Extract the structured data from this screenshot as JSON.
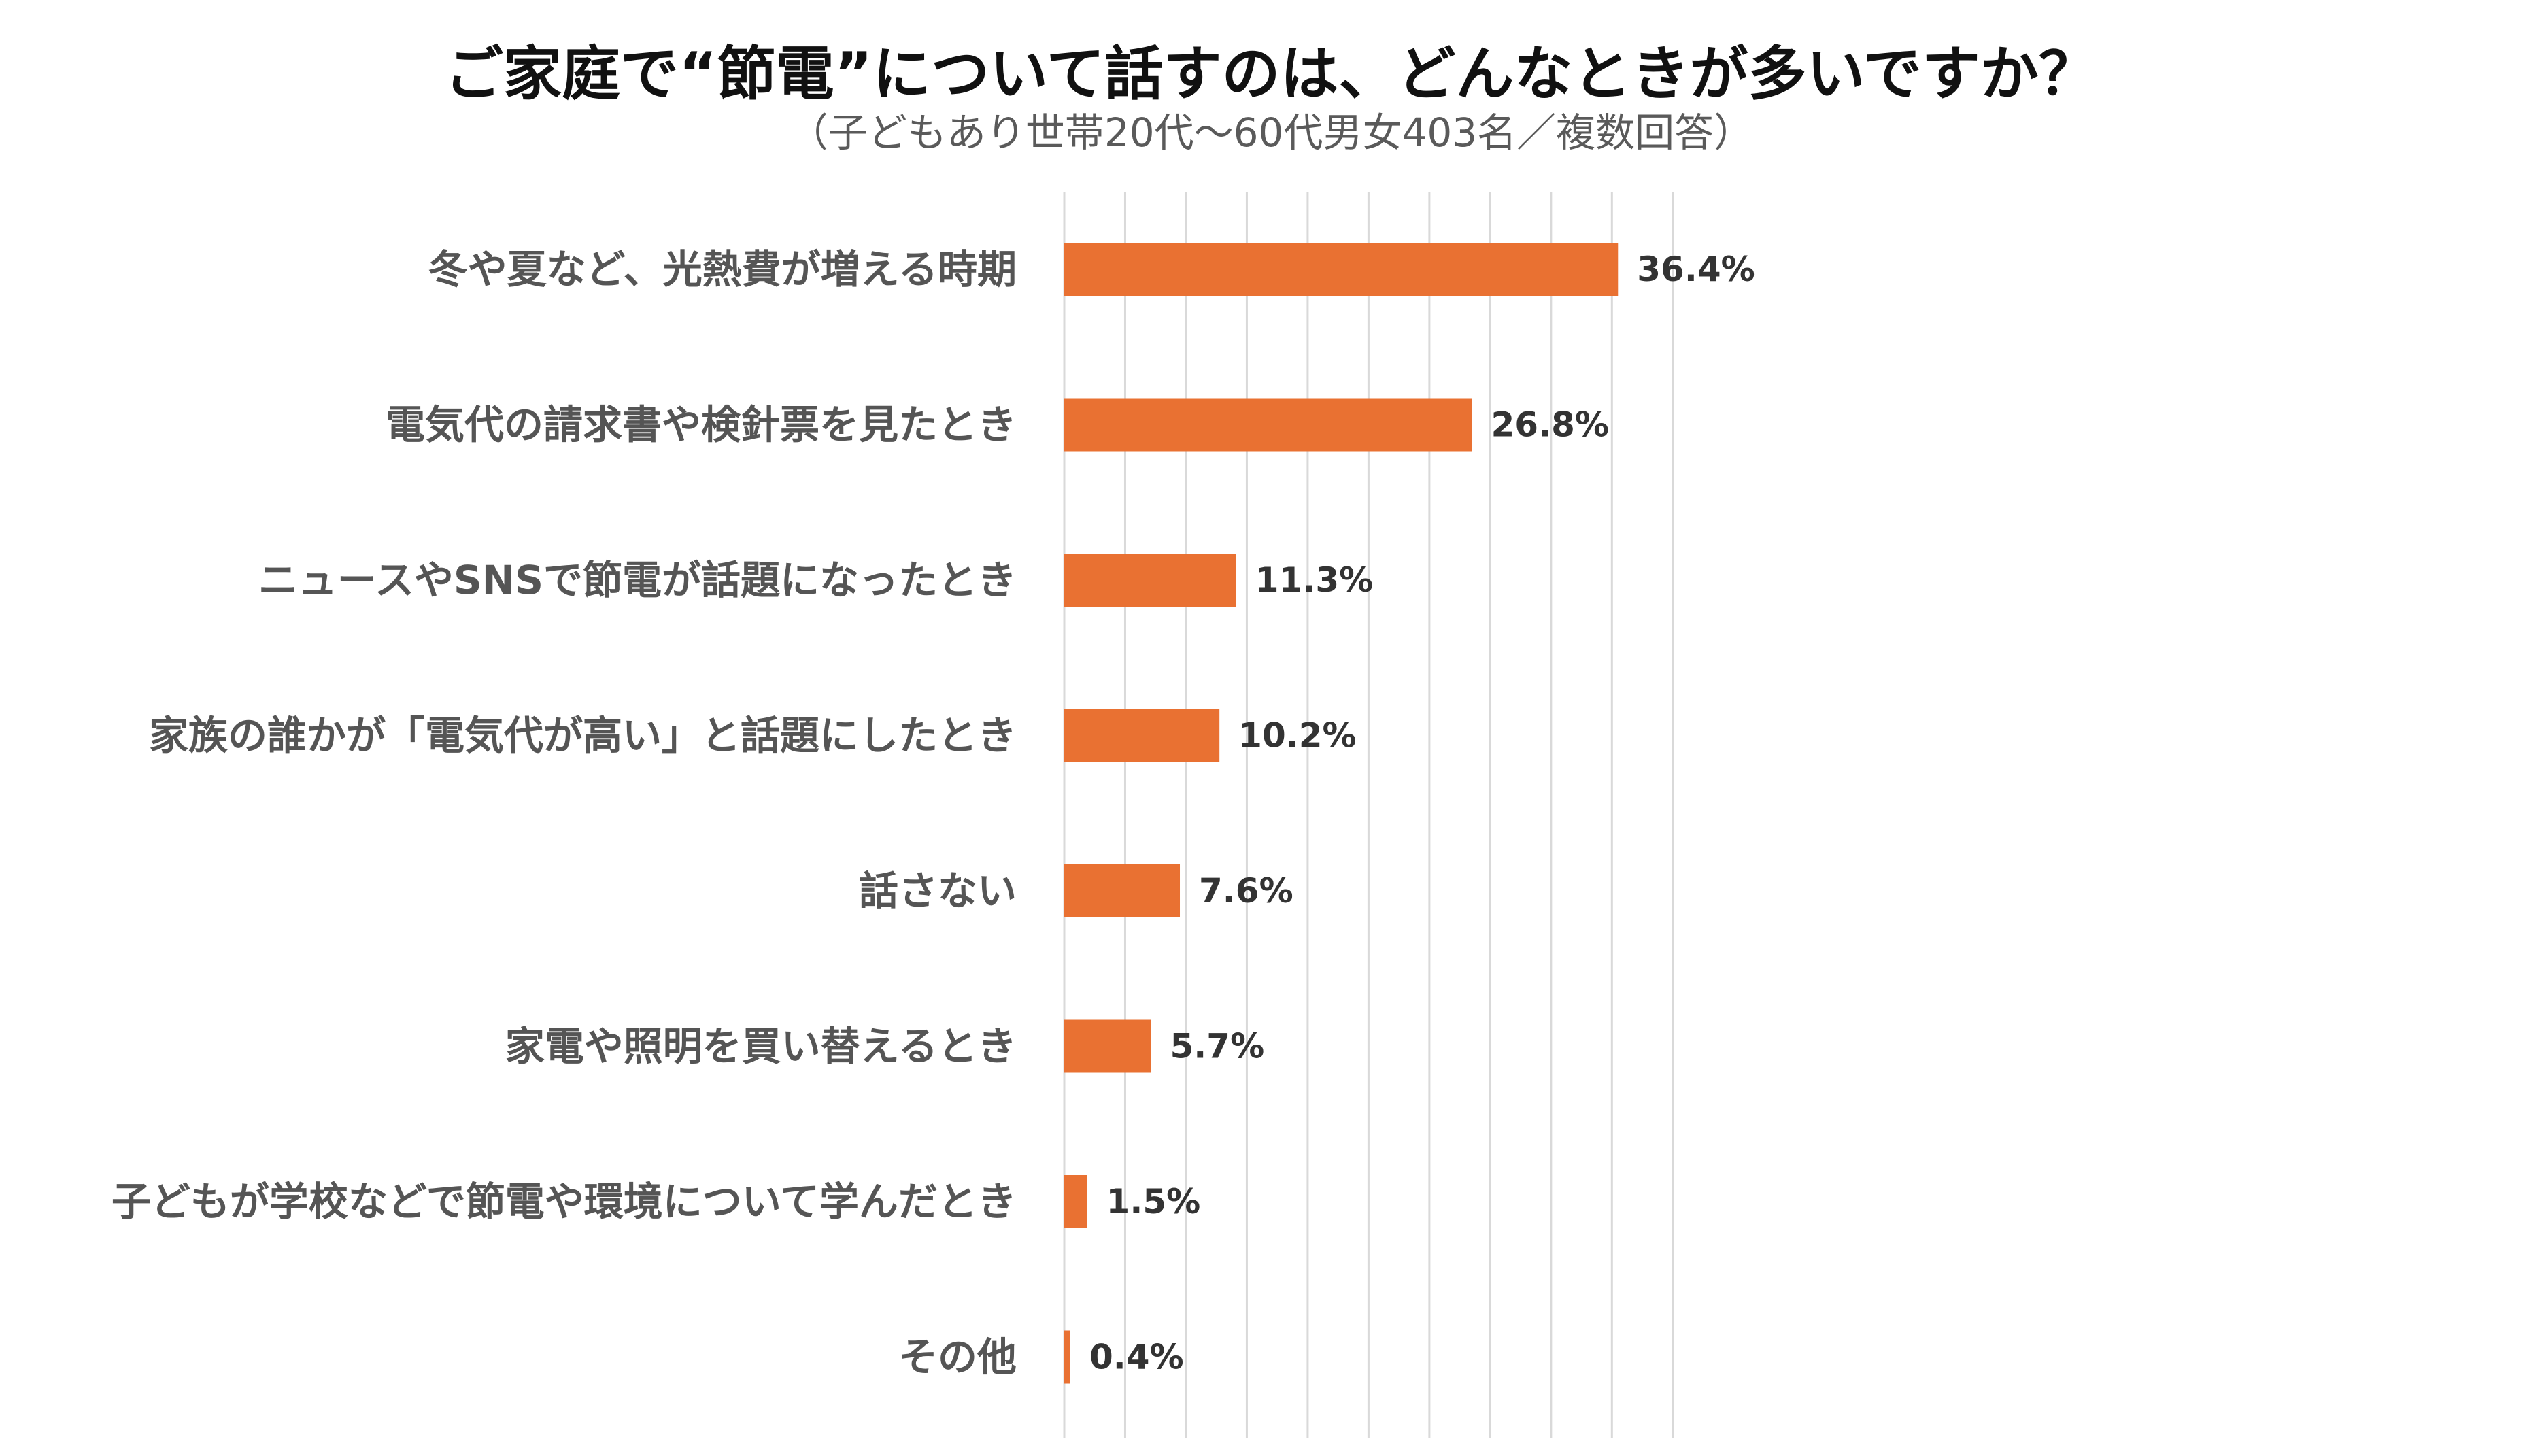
{
  "chart_data": {
    "type": "bar",
    "orientation": "horizontal",
    "title": "ご家庭で“節電”について話すのは、どんなときが多いですか？",
    "subtitle": "（子どもあり世帯20代～60代男女403名／複数回答）",
    "categories": [
      "冬や夏など、光熱費が増える時期",
      "電気代の請求書や検針票を見たとき",
      "ニュースやSNSで節電が話題になったとき",
      "家族の誰かが「電気代が高い」と話題にしたとき",
      "話さない",
      "家電や照明を買い替えるとき",
      "子どもが学校などで節電や環境について学んだとき",
      "その他"
    ],
    "values": [
      36.4,
      26.8,
      11.3,
      10.2,
      7.6,
      5.7,
      1.5,
      0.4
    ],
    "value_labels": [
      "36.4%",
      "26.8%",
      "11.3%",
      "10.2%",
      "7.6%",
      "5.7%",
      "1.5%",
      "0.4%"
    ],
    "unit": "%",
    "xlim": [
      0,
      40
    ],
    "grid": true,
    "bar_color": "#E97132",
    "gridline_color": "#D9D9D9"
  }
}
